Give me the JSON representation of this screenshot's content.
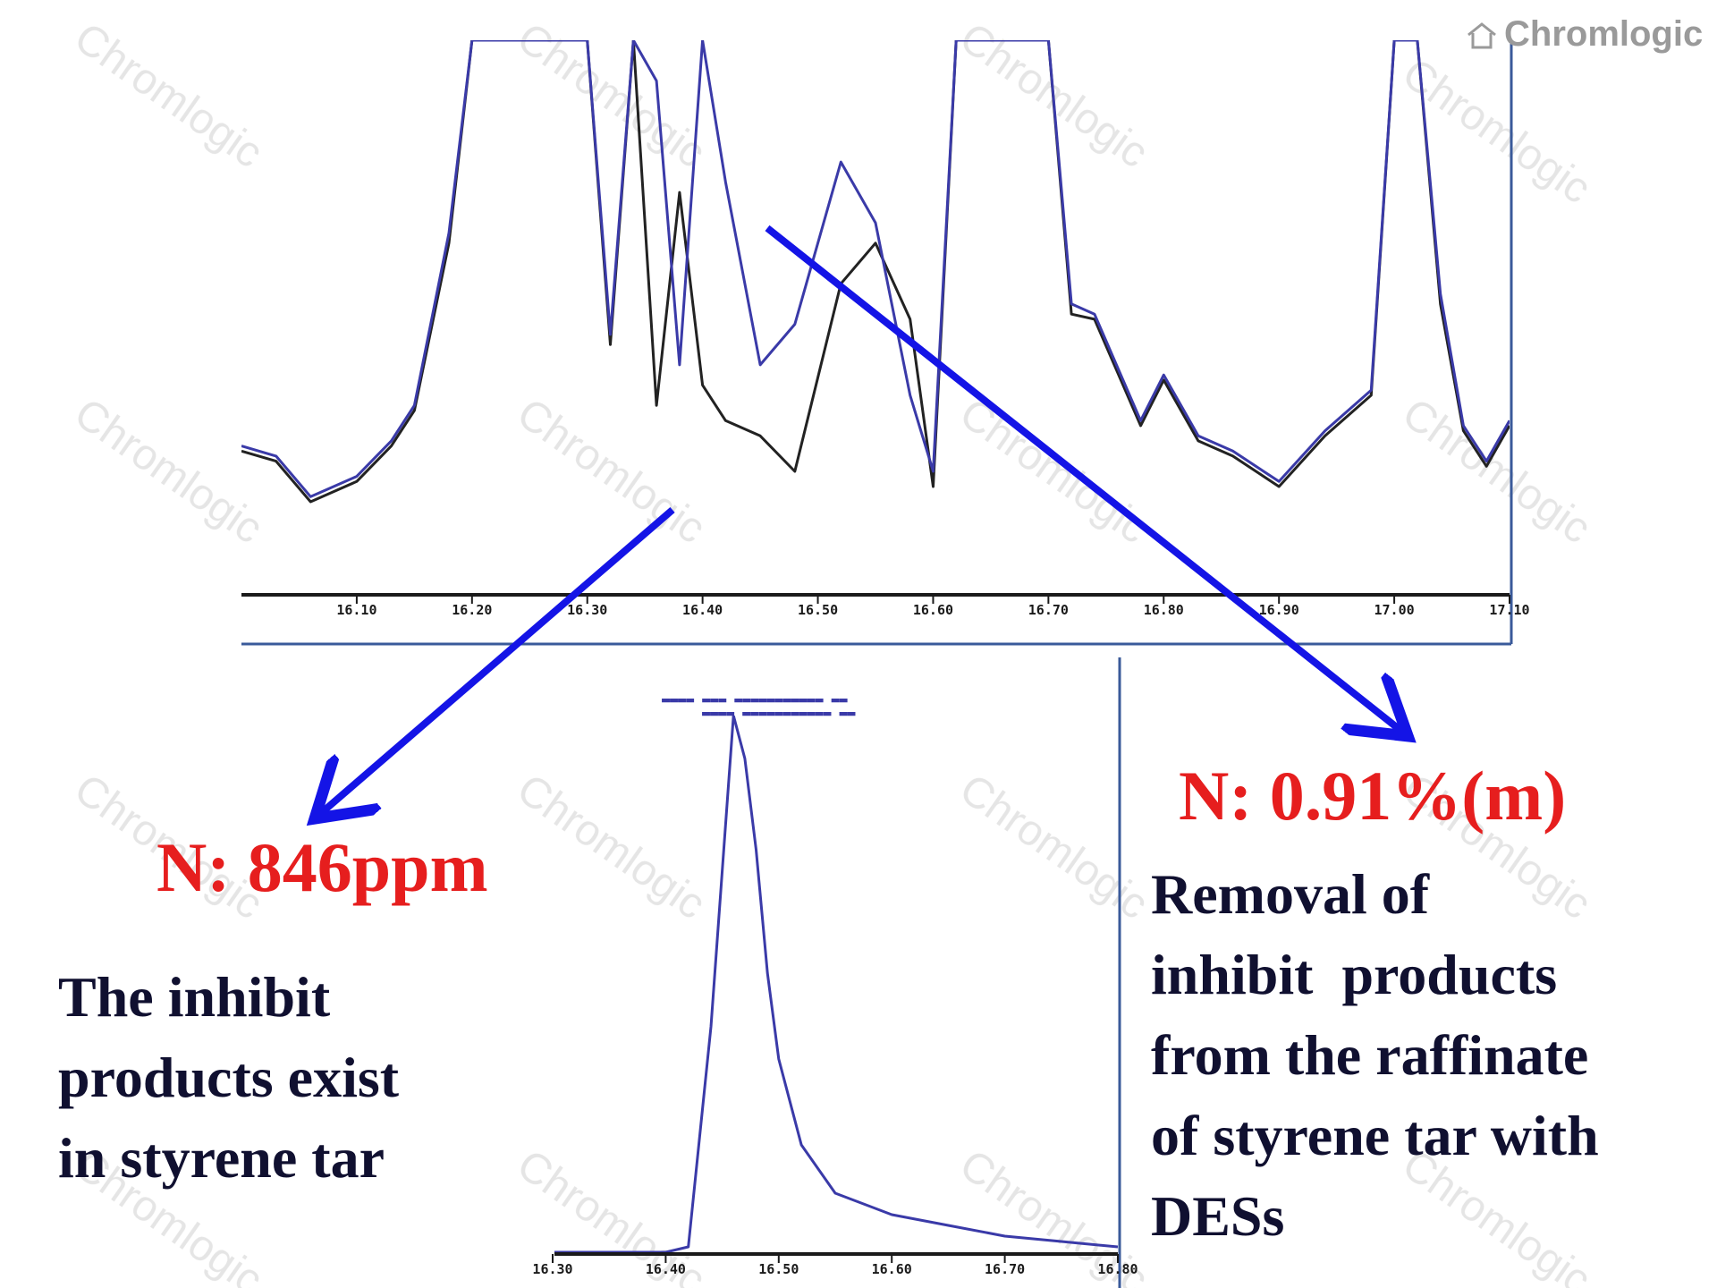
{
  "brand": {
    "logo_text": "Chromlogic",
    "watermark_text": "Chromlogic"
  },
  "colors": {
    "trace_blue": "#3a3aa8",
    "trace_black": "#222222",
    "arrow_blue": "#1414e6",
    "label_red": "#e61e1e",
    "text_dark": "#101030",
    "frame": "#3a5a9a"
  },
  "annotations": {
    "left_value": "N: 846ppm",
    "right_value": "N: 0.91%(m)",
    "left_description": [
      "The inhibit",
      "products exist",
      "in styrene tar"
    ],
    "right_description": [
      "Removal of",
      "inhibit  products",
      "from the raffinate",
      "of styrene tar with",
      "DESs"
    ]
  },
  "chart_data": [
    {
      "type": "line",
      "title": "",
      "xlabel": "",
      "ylabel": "",
      "xlim": [
        16.0,
        17.1
      ],
      "ylim": [
        0,
        100
      ],
      "grid": false,
      "x_tick_labels": [
        "16.10",
        "16.20",
        "16.30",
        "16.40",
        "16.50",
        "16.60",
        "16.70",
        "16.80",
        "16.90",
        "17.00",
        "17.10"
      ],
      "series": [
        {
          "color": "trace_black",
          "x": [
            16.0,
            16.03,
            16.06,
            16.1,
            16.13,
            16.15,
            16.18,
            16.2,
            16.22,
            16.3,
            16.32,
            16.34,
            16.36,
            16.38,
            16.4,
            16.42,
            16.45,
            16.48,
            16.52,
            16.55,
            16.58,
            16.6,
            16.62,
            16.65,
            16.7,
            16.72,
            16.74,
            16.78,
            16.8,
            16.83,
            16.86,
            16.9,
            16.94,
            16.98,
            17.0,
            17.02,
            17.04,
            17.06,
            17.08,
            17.1
          ],
          "y": [
            19,
            17,
            9,
            13,
            20,
            27,
            60,
            100,
            100,
            100,
            40,
            100,
            28,
            70,
            32,
            25,
            22,
            15,
            52,
            60,
            45,
            12,
            100,
            100,
            100,
            46,
            45,
            24,
            33,
            21,
            18,
            12,
            22,
            30,
            100,
            100,
            48,
            23,
            16,
            24
          ]
        },
        {
          "color": "trace_blue",
          "x": [
            16.0,
            16.03,
            16.06,
            16.1,
            16.13,
            16.15,
            16.18,
            16.2,
            16.22,
            16.3,
            16.32,
            16.34,
            16.36,
            16.38,
            16.4,
            16.42,
            16.45,
            16.48,
            16.52,
            16.55,
            16.58,
            16.6,
            16.62,
            16.65,
            16.7,
            16.72,
            16.74,
            16.78,
            16.8,
            16.83,
            16.86,
            16.9,
            16.94,
            16.98,
            17.0,
            17.02,
            17.04,
            17.06,
            17.08,
            17.1
          ],
          "y": [
            20,
            18,
            10,
            14,
            21,
            28,
            62,
            100,
            100,
            100,
            42,
            100,
            92,
            36,
            100,
            72,
            36,
            44,
            76,
            64,
            30,
            15,
            100,
            100,
            100,
            48,
            46,
            25,
            34,
            22,
            19,
            13,
            23,
            31,
            100,
            100,
            50,
            24,
            17,
            25
          ]
        }
      ]
    },
    {
      "type": "line",
      "title": "",
      "xlabel": "",
      "ylabel": "",
      "xlim": [
        16.3,
        16.8
      ],
      "ylim": [
        0,
        100
      ],
      "grid": false,
      "x_tick_labels": [
        "16.30",
        "16.40",
        "16.50",
        "16.60",
        "16.70",
        "16.80"
      ],
      "series": [
        {
          "color": "trace_blue",
          "x": [
            16.3,
            16.35,
            16.4,
            16.42,
            16.44,
            16.46,
            16.47,
            16.48,
            16.49,
            16.5,
            16.52,
            16.55,
            16.6,
            16.65,
            16.7,
            16.75,
            16.8
          ],
          "y": [
            0,
            0,
            0,
            1,
            42,
            100,
            92,
            75,
            52,
            36,
            20,
            11,
            7,
            5,
            3,
            2,
            1
          ]
        }
      ]
    }
  ]
}
